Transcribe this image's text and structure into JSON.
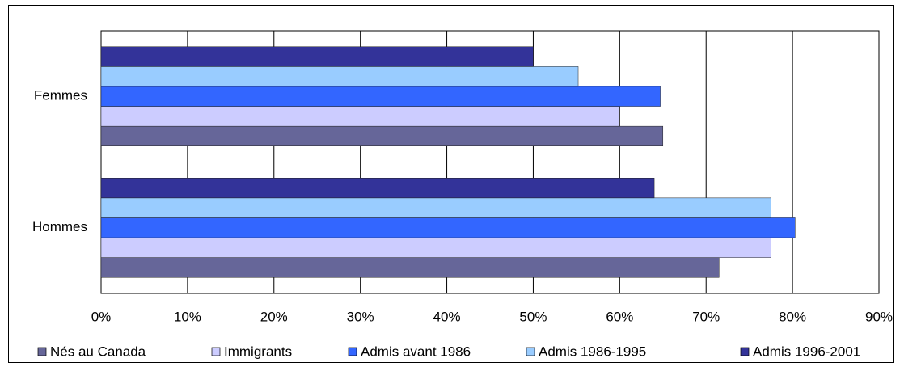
{
  "chart_data": {
    "type": "barh",
    "categories": [
      "Hommes",
      "Femmes"
    ],
    "series": [
      {
        "name": "Nés au Canada",
        "color": "#666699",
        "values": [
          71.5,
          65
        ]
      },
      {
        "name": "Immigrants",
        "color": "#ccccff",
        "values": [
          77.5,
          60
        ]
      },
      {
        "name": "Admis avant 1986",
        "color": "#3366ff",
        "values": [
          80.3,
          64.7
        ]
      },
      {
        "name": "Admis 1986-1995",
        "color": "#99ccff",
        "values": [
          77.5,
          55.2
        ]
      },
      {
        "name": "Admis 1996-2001",
        "color": "#333399",
        "values": [
          64,
          50
        ]
      }
    ],
    "xlim": [
      0,
      90
    ],
    "xticks": [
      {
        "value": 0,
        "label": "0%"
      },
      {
        "value": 10,
        "label": "10%"
      },
      {
        "value": 20,
        "label": "20%"
      },
      {
        "value": 30,
        "label": "30%"
      },
      {
        "value": 40,
        "label": "40%"
      },
      {
        "value": 50,
        "label": "50%"
      },
      {
        "value": 60,
        "label": "60%"
      },
      {
        "value": 70,
        "label": "70%"
      },
      {
        "value": 80,
        "label": "80%"
      },
      {
        "value": 90,
        "label": "90%"
      }
    ],
    "grid": true,
    "legend": "bottom"
  }
}
